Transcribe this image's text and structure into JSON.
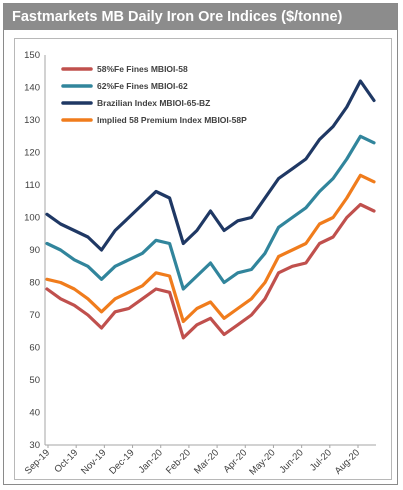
{
  "title": "Fastmarkets MB Daily Iron Ore Indices ($/tonne)",
  "chart_data": {
    "type": "line",
    "title": "Fastmarkets MB Daily Iron Ore Indices ($/tonne)",
    "xlabel": "",
    "ylabel": "",
    "ylim": [
      30,
      150
    ],
    "yticks": [
      30,
      40,
      50,
      60,
      70,
      80,
      90,
      100,
      110,
      120,
      130,
      140,
      150
    ],
    "xticks": [
      "Sep-19",
      "Oct-19",
      "Nov-19",
      "Dec-19",
      "Jan-20",
      "Feb-20",
      "Mar-20",
      "Apr-20",
      "May-20",
      "Jun-20",
      "Jul-20",
      "Aug-20"
    ],
    "grid": false,
    "legend_position": "top-left",
    "x": [
      "Sep-19",
      "mid Sep-19",
      "Oct-19",
      "mid Oct-19",
      "Nov-19",
      "mid Nov-19",
      "Dec-19",
      "mid Dec-19",
      "Jan-20",
      "mid Jan-20",
      "Feb-20",
      "mid Feb-20",
      "Mar-20",
      "mid Mar-20",
      "Apr-20",
      "mid Apr-20",
      "May-20",
      "mid May-20",
      "Jun-20",
      "mid Jun-20",
      "Jul-20",
      "mid Jul-20",
      "Aug-20",
      "mid Aug-20",
      "end Aug-20"
    ],
    "series": [
      {
        "name": "58%Fe Fines MBIOI-58",
        "color": "#c0504d",
        "values": [
          78,
          75,
          73,
          70,
          66,
          71,
          72,
          75,
          78,
          77,
          63,
          67,
          69,
          64,
          67,
          70,
          75,
          83,
          85,
          86,
          92,
          94,
          100,
          104,
          102
        ]
      },
      {
        "name": "62%Fe Fines MBIOI-62",
        "color": "#31859c",
        "values": [
          92,
          90,
          87,
          85,
          81,
          85,
          87,
          89,
          93,
          92,
          78,
          82,
          86,
          80,
          83,
          84,
          89,
          97,
          100,
          103,
          108,
          112,
          118,
          125,
          123
        ]
      },
      {
        "name": "Brazilian Index MBIOI-65-BZ",
        "color": "#1f3864",
        "values": [
          101,
          98,
          96,
          94,
          90,
          96,
          100,
          104,
          108,
          106,
          92,
          96,
          102,
          96,
          99,
          100,
          106,
          112,
          115,
          118,
          124,
          128,
          134,
          142,
          136
        ]
      },
      {
        "name": "Implied 58 Premium Index MBIOI-58P",
        "color": "#f07c1c",
        "values": [
          81,
          80,
          78,
          75,
          71,
          75,
          77,
          79,
          83,
          82,
          68,
          72,
          74,
          69,
          72,
          75,
          80,
          88,
          90,
          92,
          98,
          100,
          106,
          113,
          111
        ]
      }
    ]
  }
}
